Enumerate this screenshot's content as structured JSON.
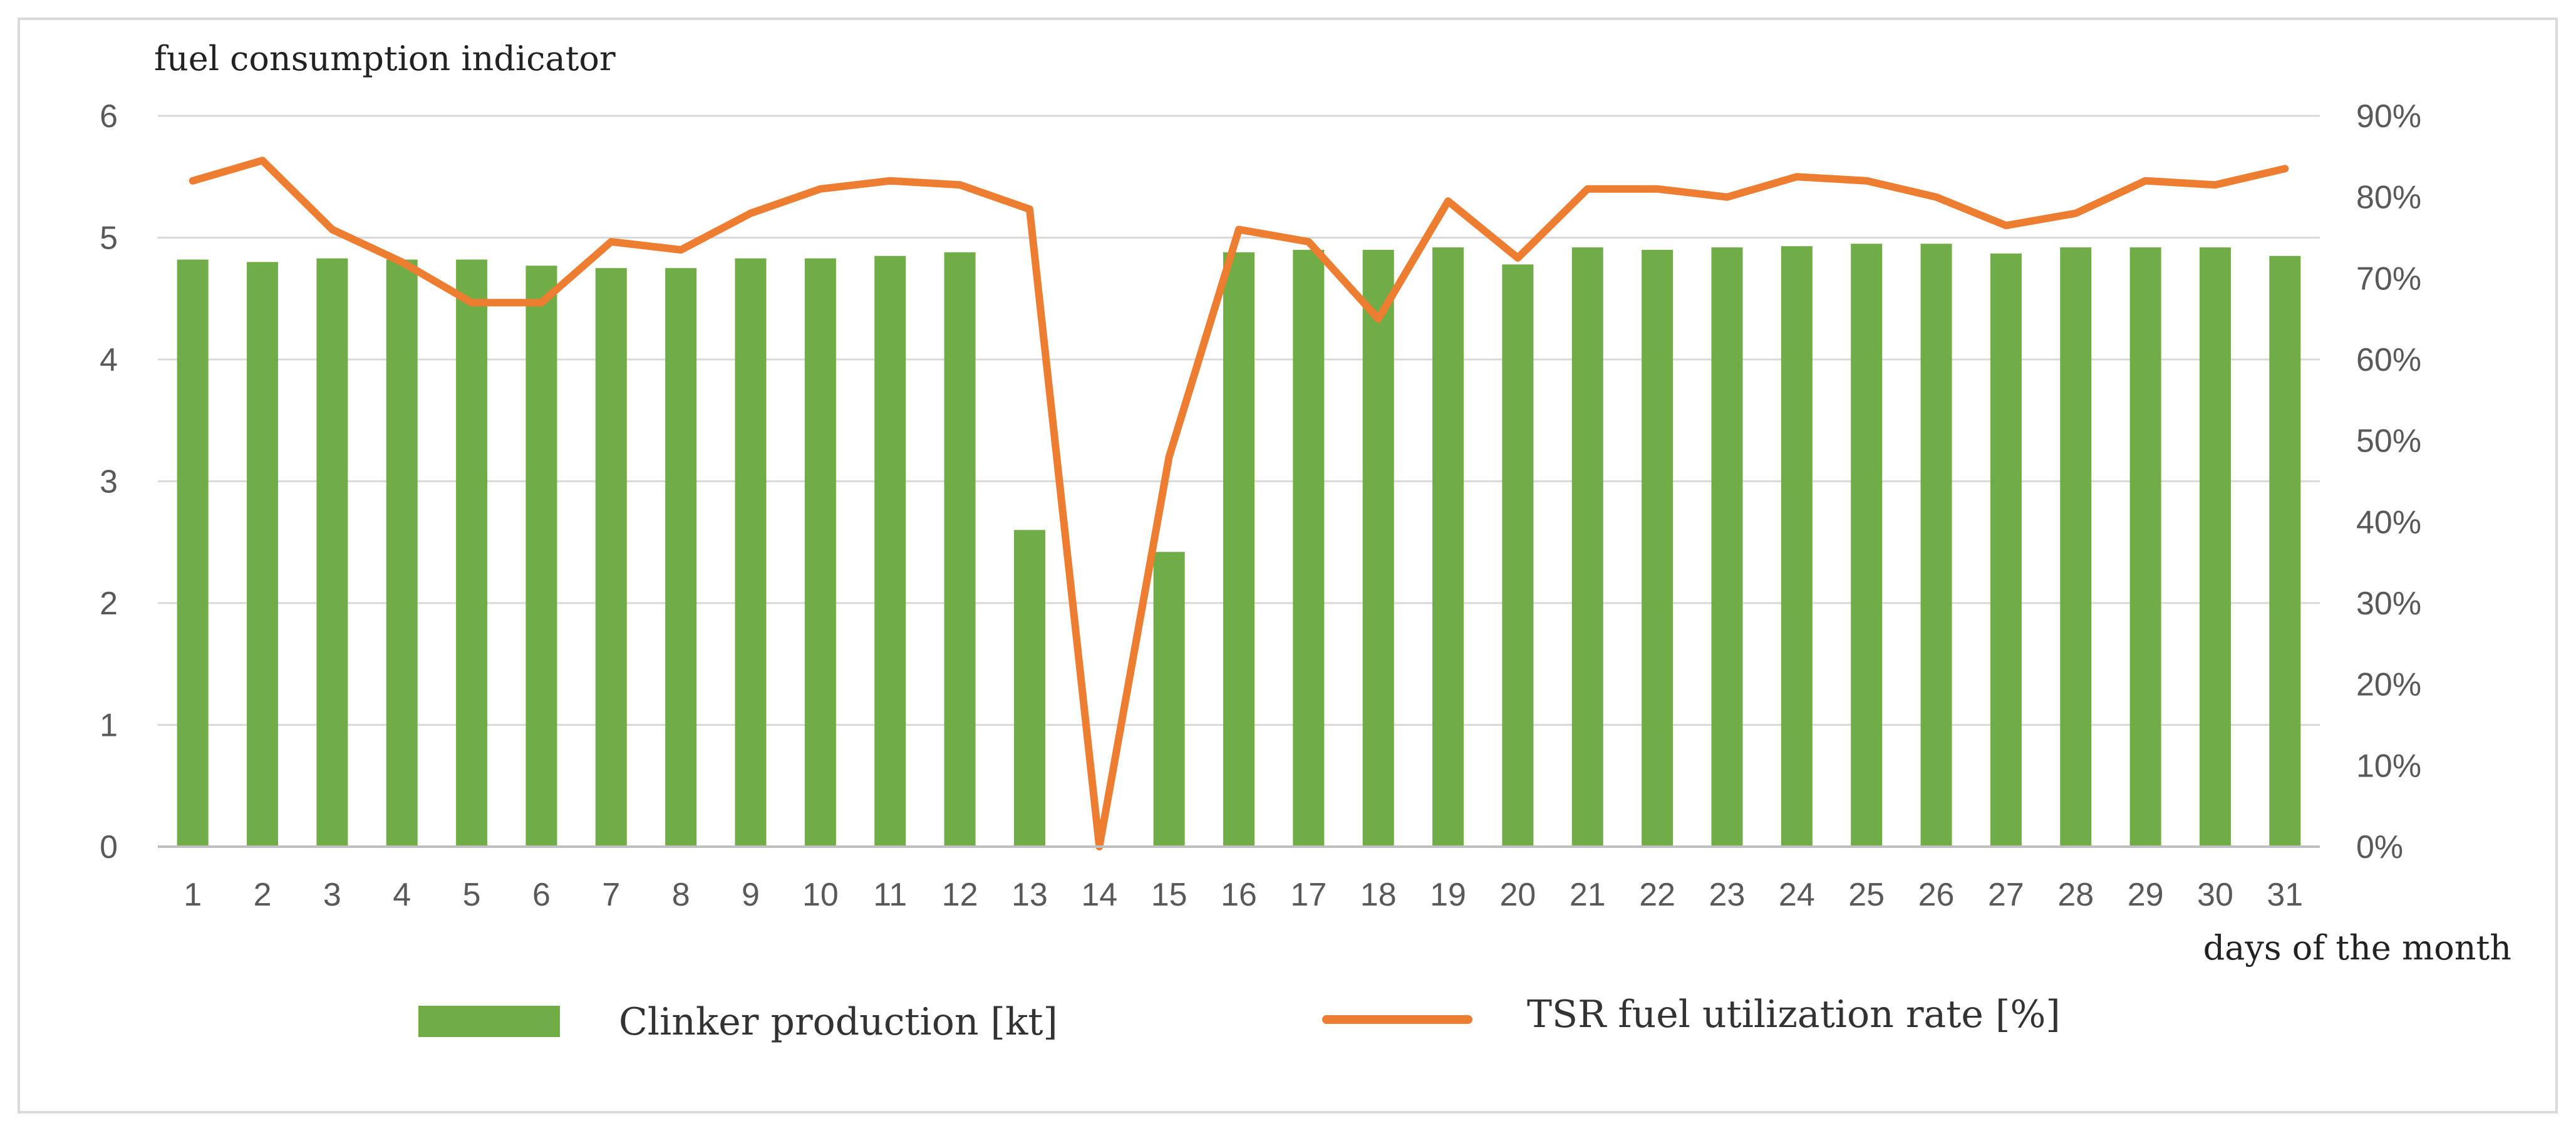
{
  "chart_data": {
    "type": "bar+line",
    "title": "",
    "ylabel": "fuel consumption indicator",
    "xlabel": "days of the month",
    "categories": [
      "1",
      "2",
      "3",
      "4",
      "5",
      "6",
      "7",
      "8",
      "9",
      "10",
      "11",
      "12",
      "13",
      "14",
      "15",
      "16",
      "17",
      "18",
      "19",
      "20",
      "21",
      "22",
      "23",
      "24",
      "25",
      "26",
      "27",
      "28",
      "29",
      "30",
      "31"
    ],
    "ylim_left": [
      0,
      6
    ],
    "yticks_left": [
      "0",
      "1",
      "2",
      "3",
      "4",
      "5",
      "6"
    ],
    "ylim_right": [
      0,
      90
    ],
    "yticks_right": [
      "0%",
      "10%",
      "20%",
      "30%",
      "40%",
      "50%",
      "60%",
      "70%",
      "80%",
      "90%"
    ],
    "series": [
      {
        "name": "Clinker production [kt]",
        "type": "bar",
        "axis": "left",
        "color": "#70ad47",
        "values": [
          4.82,
          4.8,
          4.83,
          4.82,
          4.82,
          4.77,
          4.75,
          4.75,
          4.83,
          4.83,
          4.85,
          4.88,
          2.6,
          0,
          2.42,
          4.88,
          4.9,
          4.9,
          4.92,
          4.78,
          4.92,
          4.9,
          4.92,
          4.93,
          4.95,
          4.95,
          4.87,
          4.92,
          4.92,
          4.92,
          4.85
        ]
      },
      {
        "name": "TSR fuel utilization rate [%]",
        "type": "line",
        "axis": "right",
        "color": "#ed7d31",
        "values": [
          82,
          84.5,
          76,
          72,
          67,
          67,
          74.5,
          73.5,
          78,
          81,
          82,
          81.5,
          78.5,
          0,
          48,
          76,
          74.5,
          65,
          79.5,
          72.5,
          81,
          81,
          80,
          82.5,
          82,
          80,
          76.5,
          78,
          82,
          81.5,
          83.5
        ]
      }
    ],
    "legend": [
      {
        "label": "Clinker production [kt]",
        "symbol": "bar"
      },
      {
        "label": "TSR fuel utilization rate [%]",
        "symbol": "line"
      }
    ],
    "legend_position": "bottom",
    "grid": true
  }
}
